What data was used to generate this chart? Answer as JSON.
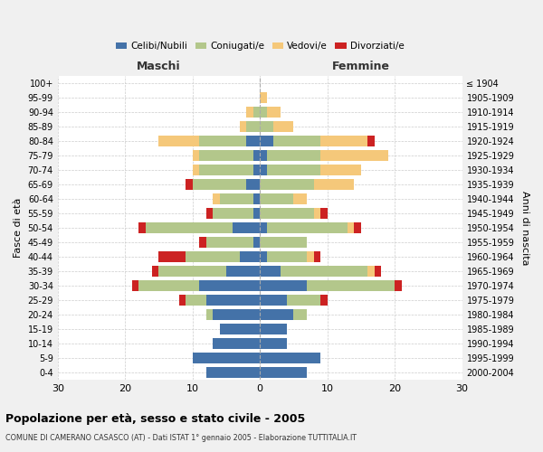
{
  "age_groups": [
    "0-4",
    "5-9",
    "10-14",
    "15-19",
    "20-24",
    "25-29",
    "30-34",
    "35-39",
    "40-44",
    "45-49",
    "50-54",
    "55-59",
    "60-64",
    "65-69",
    "70-74",
    "75-79",
    "80-84",
    "85-89",
    "90-94",
    "95-99",
    "100+"
  ],
  "birth_years": [
    "2000-2004",
    "1995-1999",
    "1990-1994",
    "1985-1989",
    "1980-1984",
    "1975-1979",
    "1970-1974",
    "1965-1969",
    "1960-1964",
    "1955-1959",
    "1950-1954",
    "1945-1949",
    "1940-1944",
    "1935-1939",
    "1930-1934",
    "1925-1929",
    "1920-1924",
    "1915-1919",
    "1910-1914",
    "1905-1909",
    "≤ 1904"
  ],
  "maschi": {
    "celibi": [
      8,
      10,
      7,
      6,
      7,
      8,
      9,
      5,
      3,
      1,
      4,
      1,
      1,
      2,
      1,
      1,
      2,
      0,
      0,
      0,
      0
    ],
    "coniugati": [
      0,
      0,
      0,
      0,
      1,
      3,
      9,
      10,
      8,
      7,
      13,
      6,
      5,
      8,
      8,
      8,
      7,
      2,
      1,
      0,
      0
    ],
    "vedovi": [
      0,
      0,
      0,
      0,
      0,
      0,
      0,
      0,
      0,
      0,
      0,
      0,
      1,
      0,
      1,
      1,
      6,
      1,
      1,
      0,
      0
    ],
    "divorziati": [
      0,
      0,
      0,
      0,
      0,
      1,
      1,
      1,
      4,
      1,
      1,
      1,
      0,
      1,
      0,
      0,
      0,
      0,
      0,
      0,
      0
    ]
  },
  "femmine": {
    "nubili": [
      7,
      9,
      4,
      4,
      5,
      4,
      7,
      3,
      1,
      0,
      1,
      0,
      0,
      0,
      1,
      1,
      2,
      0,
      0,
      0,
      0
    ],
    "coniugate": [
      0,
      0,
      0,
      0,
      2,
      5,
      13,
      13,
      6,
      7,
      12,
      8,
      5,
      8,
      8,
      8,
      7,
      2,
      1,
      0,
      0
    ],
    "vedove": [
      0,
      0,
      0,
      0,
      0,
      0,
      0,
      1,
      1,
      0,
      1,
      1,
      2,
      6,
      6,
      10,
      7,
      3,
      2,
      1,
      0
    ],
    "divorziate": [
      0,
      0,
      0,
      0,
      0,
      1,
      1,
      1,
      1,
      0,
      1,
      1,
      0,
      0,
      0,
      0,
      1,
      0,
      0,
      0,
      0
    ]
  },
  "colors": {
    "celibi": "#4472a8",
    "coniugati": "#b3c78b",
    "vedovi": "#f5c87a",
    "divorziati": "#cc2222"
  },
  "title": "Popolazione per età, sesso e stato civile - 2005",
  "subtitle": "COMUNE DI CAMERANO CASASCO (AT) - Dati ISTAT 1° gennaio 2005 - Elaborazione TUTTITALIA.IT",
  "xlabel_left": "Maschi",
  "xlabel_right": "Femmine",
  "ylabel_left": "Fasce di età",
  "ylabel_right": "Anni di nascita",
  "xlim": 30,
  "bg_color": "#f0f0f0",
  "plot_bg": "#ffffff"
}
